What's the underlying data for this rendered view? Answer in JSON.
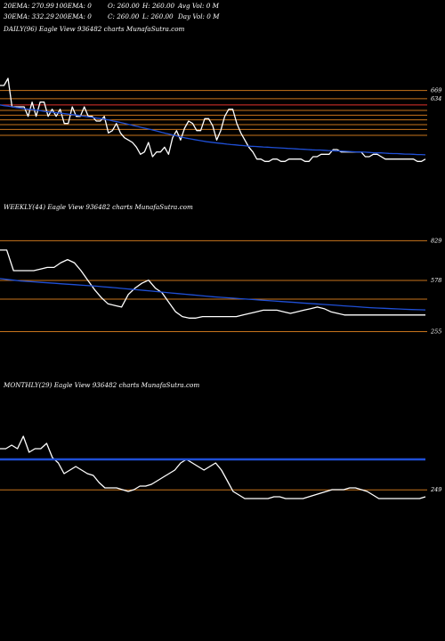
{
  "header": {
    "ema20": "20EMA: 270.99",
    "ema100": "100EMA: 0",
    "open": "O: 260.00",
    "high": "H: 260.00",
    "avgvol": "Avg Vol: 0  M",
    "ema30": "30EMA: 332.29",
    "ema200": "200EMA: 0",
    "close": "C: 260.00",
    "low": "L: 260.00",
    "dayvol": "Day Vol: 0  M"
  },
  "colors": {
    "background": "#000000",
    "price": "#ffffff",
    "ema": "#1f4fd6",
    "level": "#c8741c",
    "level_red": "#e0322a"
  },
  "chart_data": [
    {
      "type": "line",
      "title": "DAILY(96) Eagle  View  936482  charts MunafaSutra.com",
      "series": [
        {
          "values": [
            690,
            690,
            720,
            600,
            600,
            600,
            600,
            560,
            620,
            560,
            620,
            620,
            560,
            590,
            560,
            590,
            530,
            530,
            600,
            560,
            560,
            600,
            560,
            560,
            540,
            540,
            560,
            490,
            500,
            530,
            490,
            470,
            460,
            450,
            430,
            400,
            410,
            450,
            390,
            410,
            410,
            430,
            400,
            470,
            500,
            460,
            510,
            540,
            530,
            500,
            500,
            550,
            550,
            520,
            460,
            500,
            560,
            590,
            590,
            530,
            490,
            460,
            430,
            410,
            380,
            380,
            370,
            370,
            380,
            380,
            370,
            370,
            380,
            380,
            380,
            380,
            370,
            370,
            390,
            390,
            400,
            400,
            400,
            420,
            420,
            410,
            410,
            410,
            410,
            410,
            410,
            390,
            390,
            400,
            400,
            390,
            380,
            380,
            380,
            380,
            380,
            380,
            380,
            380,
            370,
            370,
            380
          ]
        },
        {
          "values": [
            608,
            605,
            603,
            600,
            597,
            595,
            592,
            590,
            588,
            586,
            584,
            581,
            579,
            577,
            575,
            573,
            571,
            569,
            567,
            565,
            562,
            560,
            557,
            555,
            552,
            550,
            547,
            544,
            540,
            537,
            533,
            529,
            525,
            521,
            517,
            513,
            509,
            505,
            501,
            497,
            492,
            488,
            484,
            480,
            476,
            472,
            468,
            465,
            462,
            459,
            456,
            453,
            451,
            449,
            447,
            445,
            443,
            441,
            440,
            438,
            437,
            435,
            434,
            433,
            432,
            431,
            430,
            429,
            428,
            427,
            426,
            425,
            424,
            423,
            422,
            421,
            420,
            419,
            418,
            418,
            417,
            416,
            415,
            414,
            414,
            413,
            412,
            411,
            410,
            410,
            409,
            408,
            407,
            406,
            406,
            405,
            404,
            403,
            403,
            402,
            401,
            401,
            400,
            399,
            399,
            398
          ]
        }
      ],
      "levels": [
        {
          "label": "669",
          "value": 669
        },
        {
          "label": "634",
          "value": 634
        },
        {
          "label": "",
          "value": 608
        },
        {
          "label": "",
          "value": 585
        },
        {
          "label": "",
          "value": 565
        },
        {
          "label": "",
          "value": 545
        },
        {
          "label": "",
          "value": 525
        },
        {
          "label": "",
          "value": 505
        },
        {
          "label": "",
          "value": 480
        }
      ]
    },
    {
      "type": "line",
      "title": "WEEKLY(44) Eagle  View  936482  charts MunafaSutra.com",
      "series": [
        {
          "values": [
            770,
            770,
            640,
            640,
            640,
            640,
            650,
            660,
            660,
            690,
            710,
            690,
            640,
            580,
            520,
            470,
            430,
            420,
            410,
            490,
            530,
            560,
            580,
            530,
            500,
            440,
            380,
            350,
            340,
            340,
            350,
            350,
            350,
            350,
            350,
            350,
            360,
            370,
            380,
            390,
            390,
            390,
            380,
            370,
            380,
            390,
            400,
            410,
            400,
            380,
            370,
            360,
            360,
            360,
            360,
            360,
            360,
            360,
            360,
            360,
            360,
            360,
            360,
            360
          ]
        },
        {
          "values": [
            590,
            585,
            580,
            575,
            572,
            569,
            566,
            563,
            560,
            557,
            554,
            551,
            548,
            545,
            542,
            538,
            535,
            531,
            527,
            523,
            519,
            515,
            511,
            507,
            503,
            499,
            495,
            491,
            487,
            483,
            479,
            475,
            472,
            469,
            466,
            463,
            460,
            457,
            454,
            451,
            448,
            445,
            442,
            439,
            436,
            433,
            430,
            427,
            424,
            421,
            418,
            415,
            412,
            409,
            406,
            404,
            402,
            400,
            398,
            396,
            394,
            393,
            392
          ]
        }
      ],
      "levels": [
        {
          "label": "829",
          "value": 829
        },
        {
          "label": "578",
          "value": 578
        },
        {
          "label": "",
          "value": 460
        },
        {
          "label": "255",
          "value": 255
        }
      ]
    },
    {
      "type": "line",
      "title": "MONTHLY(29) Eagle  View  936482  charts MunafaSutra.com",
      "series": [
        {
          "values": [
            480,
            480,
            500,
            480,
            550,
            460,
            480,
            480,
            510,
            430,
            400,
            340,
            360,
            380,
            360,
            340,
            330,
            290,
            260,
            260,
            260,
            250,
            240,
            250,
            270,
            270,
            280,
            300,
            320,
            340,
            360,
            400,
            420,
            400,
            380,
            360,
            380,
            400,
            360,
            300,
            240,
            220,
            200,
            200,
            200,
            200,
            200,
            210,
            210,
            200,
            200,
            200,
            200,
            210,
            220,
            230,
            240,
            250,
            250,
            250,
            260,
            260,
            250,
            240,
            220,
            200,
            200,
            200,
            200,
            200,
            200,
            200,
            200,
            210
          ]
        },
        {
          "values": [
            420,
            420,
            420,
            420,
            420,
            420,
            420,
            420,
            420,
            420,
            420,
            420,
            420,
            420,
            420,
            420,
            420,
            420,
            420,
            420
          ]
        }
      ],
      "levels": [
        {
          "label": "249",
          "value": 249
        }
      ]
    }
  ]
}
